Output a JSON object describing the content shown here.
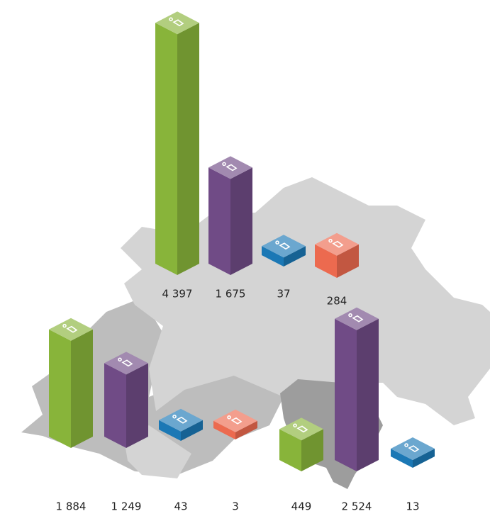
{
  "chart_data": {
    "type": "isometric_bar",
    "groups": [
      {
        "values": [
          4397,
          1675,
          37,
          284
        ],
        "value_labels": [
          "4 397",
          "1 675",
          "37",
          "284"
        ],
        "colors": [
          "#88b43a",
          "#704b86",
          "#1b78b5",
          "#ec6a4f"
        ]
      },
      {
        "values": [
          1884,
          1249,
          43,
          3
        ],
        "value_labels": [
          "1 884",
          "1 249",
          "43",
          "3"
        ],
        "colors": [
          "#88b43a",
          "#704b86",
          "#1b78b5",
          "#ec6a4f"
        ]
      },
      {
        "values": [
          449,
          2524,
          13
        ],
        "value_labels": [
          "449",
          "2 524",
          "13"
        ],
        "colors": [
          "#88b43a",
          "#704b86",
          "#1b78b5"
        ]
      }
    ]
  }
}
